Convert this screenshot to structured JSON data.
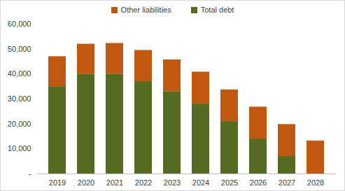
{
  "chart_data": {
    "type": "bar",
    "stacked": true,
    "legend": "top",
    "categories": [
      "2019",
      "2020",
      "2021",
      "2022",
      "2023",
      "2024",
      "2025",
      "2026",
      "2027",
      "2028"
    ],
    "series": [
      {
        "name": "Total debt",
        "color": "#556B22",
        "values": [
          35000,
          40000,
          40000,
          37000,
          33000,
          28000,
          21000,
          14000,
          7000,
          0
        ]
      },
      {
        "name": "Other liabilities",
        "color": "#C0580F",
        "values": [
          12000,
          12000,
          12300,
          12500,
          12700,
          12800,
          12700,
          12800,
          12800,
          13200
        ]
      }
    ],
    "ylim": [
      0,
      60000
    ],
    "yticks": [
      {
        "value": 0,
        "label": "-"
      },
      {
        "value": 10000,
        "label": "10,000"
      },
      {
        "value": 20000,
        "label": "20,000"
      },
      {
        "value": 30000,
        "label": "30,000"
      },
      {
        "value": 40000,
        "label": "40,000"
      },
      {
        "value": 50000,
        "label": "50,000"
      },
      {
        "value": 60000,
        "label": "60,000"
      }
    ],
    "grid": false
  }
}
